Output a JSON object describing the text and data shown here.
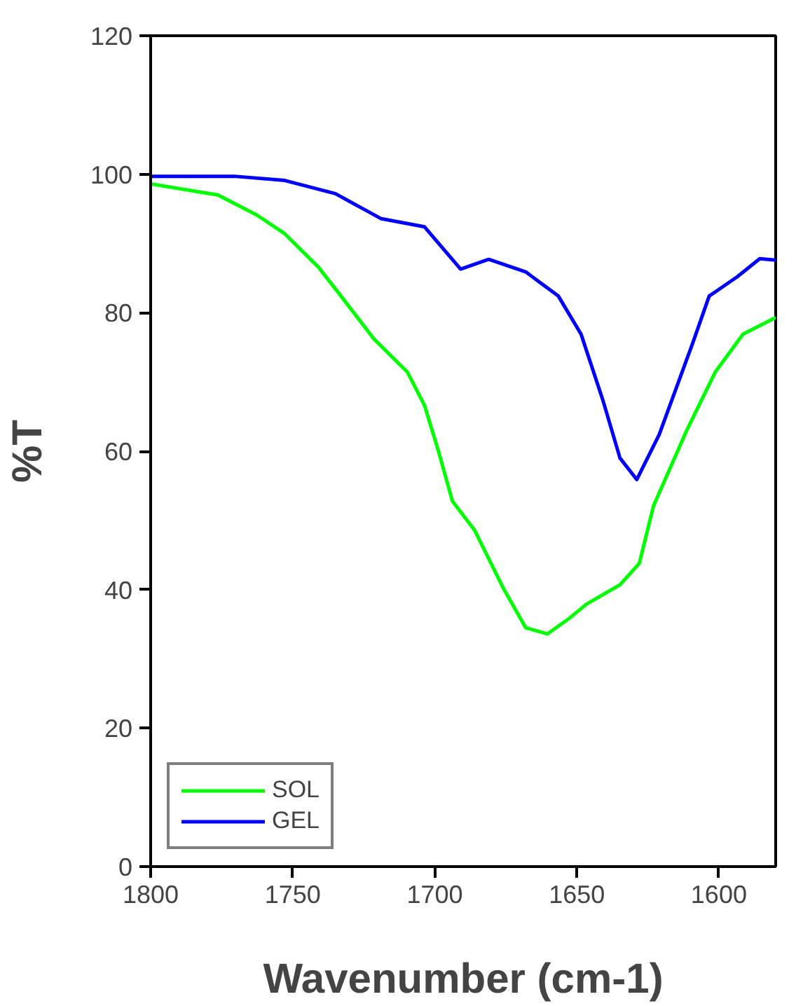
{
  "chart_data": {
    "type": "line",
    "xlabel": "Wavenumber (cm-1)",
    "ylabel": "%T",
    "xlim": [
      1800,
      1580
    ],
    "xticks": [
      1800,
      1750,
      1700,
      1650,
      1600
    ],
    "ylim": [
      0,
      120
    ],
    "yticks": [
      0,
      20,
      40,
      60,
      80,
      100,
      120
    ],
    "grid": false,
    "legend": "bottom left",
    "marker": "none",
    "line_style": "solid",
    "series": [
      {
        "name": "SOL",
        "color": "#00ff00",
        "x": [
          1800,
          1776.4,
          1762.6,
          1752.8,
          1741,
          1733,
          1721.4,
          1709.6,
          1703.6,
          1698.7,
          1693.8,
          1686,
          1676,
          1668,
          1660.4,
          1652.5,
          1646.6,
          1634.8,
          1628,
          1623,
          1611.2,
          1601.3,
          1591.5,
          1580
        ],
        "values": [
          98.6,
          97.0,
          94.1,
          91.4,
          86.6,
          82.4,
          76.2,
          71.4,
          66.6,
          60.0,
          52.8,
          48.6,
          40.3,
          34.5,
          33.6,
          35.9,
          37.9,
          40.7,
          43.8,
          52.1,
          63.1,
          71.4,
          76.9,
          79.3
        ]
      },
      {
        "name": "GEL",
        "color": "#0000ff",
        "x": [
          1800,
          1770.5,
          1752.8,
          1735,
          1719,
          1703.6,
          1690.9,
          1681,
          1668,
          1656.5,
          1648.5,
          1640.7,
          1634.8,
          1628.9,
          1621,
          1609.3,
          1603.4,
          1593.5,
          1585.6,
          1580
        ],
        "values": [
          99.7,
          99.7,
          99.1,
          97.2,
          93.6,
          92.4,
          86.3,
          87.7,
          85.9,
          82.4,
          76.9,
          67.2,
          59.0,
          55.9,
          62.4,
          75.5,
          82.4,
          85.2,
          87.8,
          87.6
        ]
      }
    ]
  }
}
